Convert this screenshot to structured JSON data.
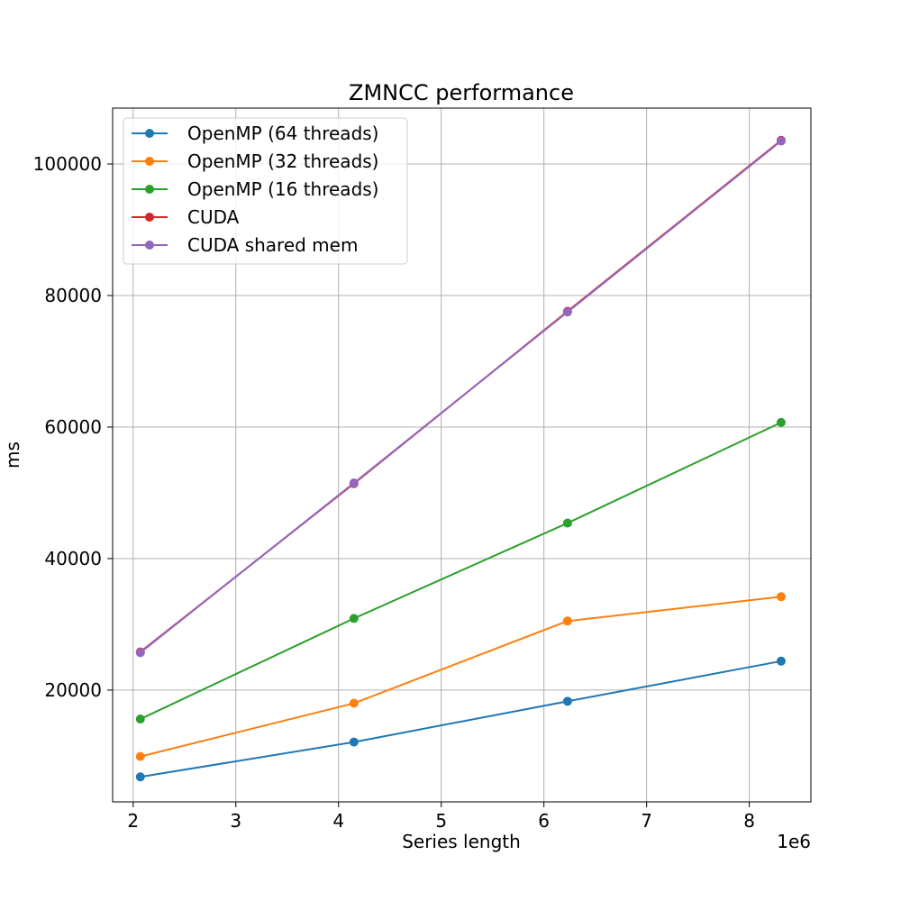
{
  "chart_data": {
    "type": "line",
    "title": "ZMNCC performance",
    "xlabel": "Series length",
    "ylabel": "ms",
    "x_offset_label": "1e6",
    "xlim": [
      1.8,
      8.6
    ],
    "ylim": [
      3000,
      108500
    ],
    "xticks": [
      2,
      3,
      4,
      5,
      6,
      7,
      8
    ],
    "yticks": [
      20000,
      40000,
      60000,
      80000,
      100000
    ],
    "x": [
      2.07,
      4.15,
      6.23,
      8.31
    ],
    "grid": true,
    "legend_position": "top-left",
    "series": [
      {
        "name": "OpenMP (64 threads)",
        "color": "#1f77b4",
        "values": [
          6800,
          12100,
          18300,
          24400
        ]
      },
      {
        "name": "OpenMP (32 threads)",
        "color": "#ff7f0e",
        "values": [
          9900,
          18000,
          30500,
          34200
        ]
      },
      {
        "name": "OpenMP (16 threads)",
        "color": "#2ca02c",
        "values": [
          15600,
          30900,
          45400,
          60700
        ]
      },
      {
        "name": "CUDA",
        "color": "#d62728",
        "values": [
          25800,
          51400,
          77600,
          103600
        ]
      },
      {
        "name": "CUDA shared mem",
        "color": "#9467bd",
        "values": [
          25700,
          51500,
          77500,
          103500
        ]
      }
    ]
  }
}
